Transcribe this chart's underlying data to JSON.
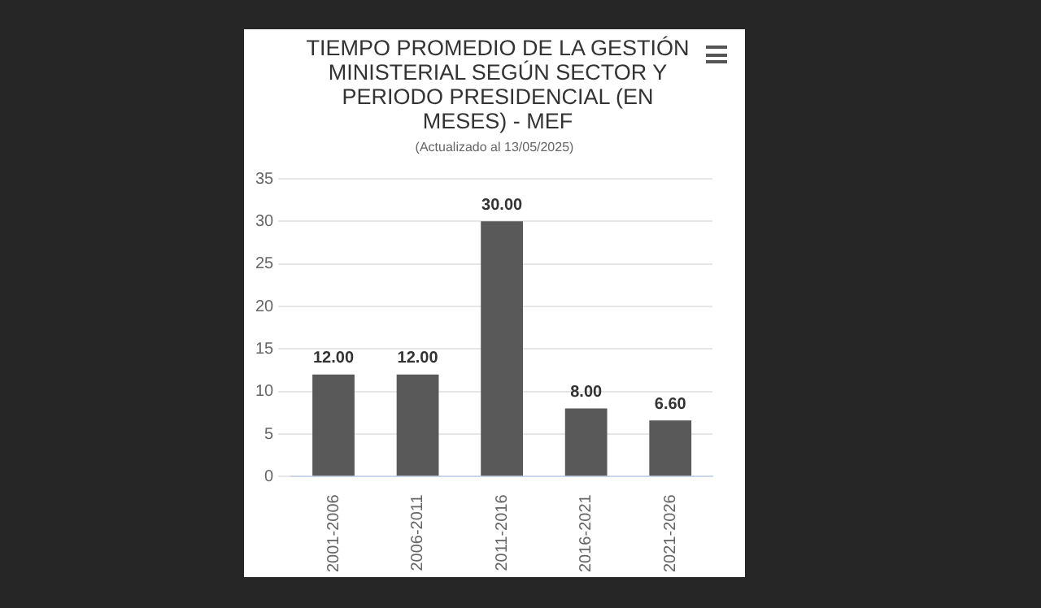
{
  "chart_data": {
    "type": "bar",
    "title": "TIEMPO PROMEDIO DE LA GESTIÓN MINISTERIAL SEGÚN SECTOR Y PERIODO PRESIDENCIAL (EN MESES) - MEF",
    "subtitle": "(Actualizado al 13/05/2025)",
    "categories": [
      "2001-2006",
      "2006-2011",
      "2011-2016",
      "2016-2021",
      "2021-2026"
    ],
    "values": [
      12,
      12,
      30,
      8,
      6.6
    ],
    "value_labels": [
      "12.00",
      "12.00",
      "30.00",
      "8.00",
      "6.60"
    ],
    "color": "#595959",
    "ylim": [
      0,
      35
    ],
    "yticks": [
      0,
      5,
      10,
      15,
      20,
      25,
      30,
      35
    ],
    "grid": "y",
    "legend": false
  }
}
